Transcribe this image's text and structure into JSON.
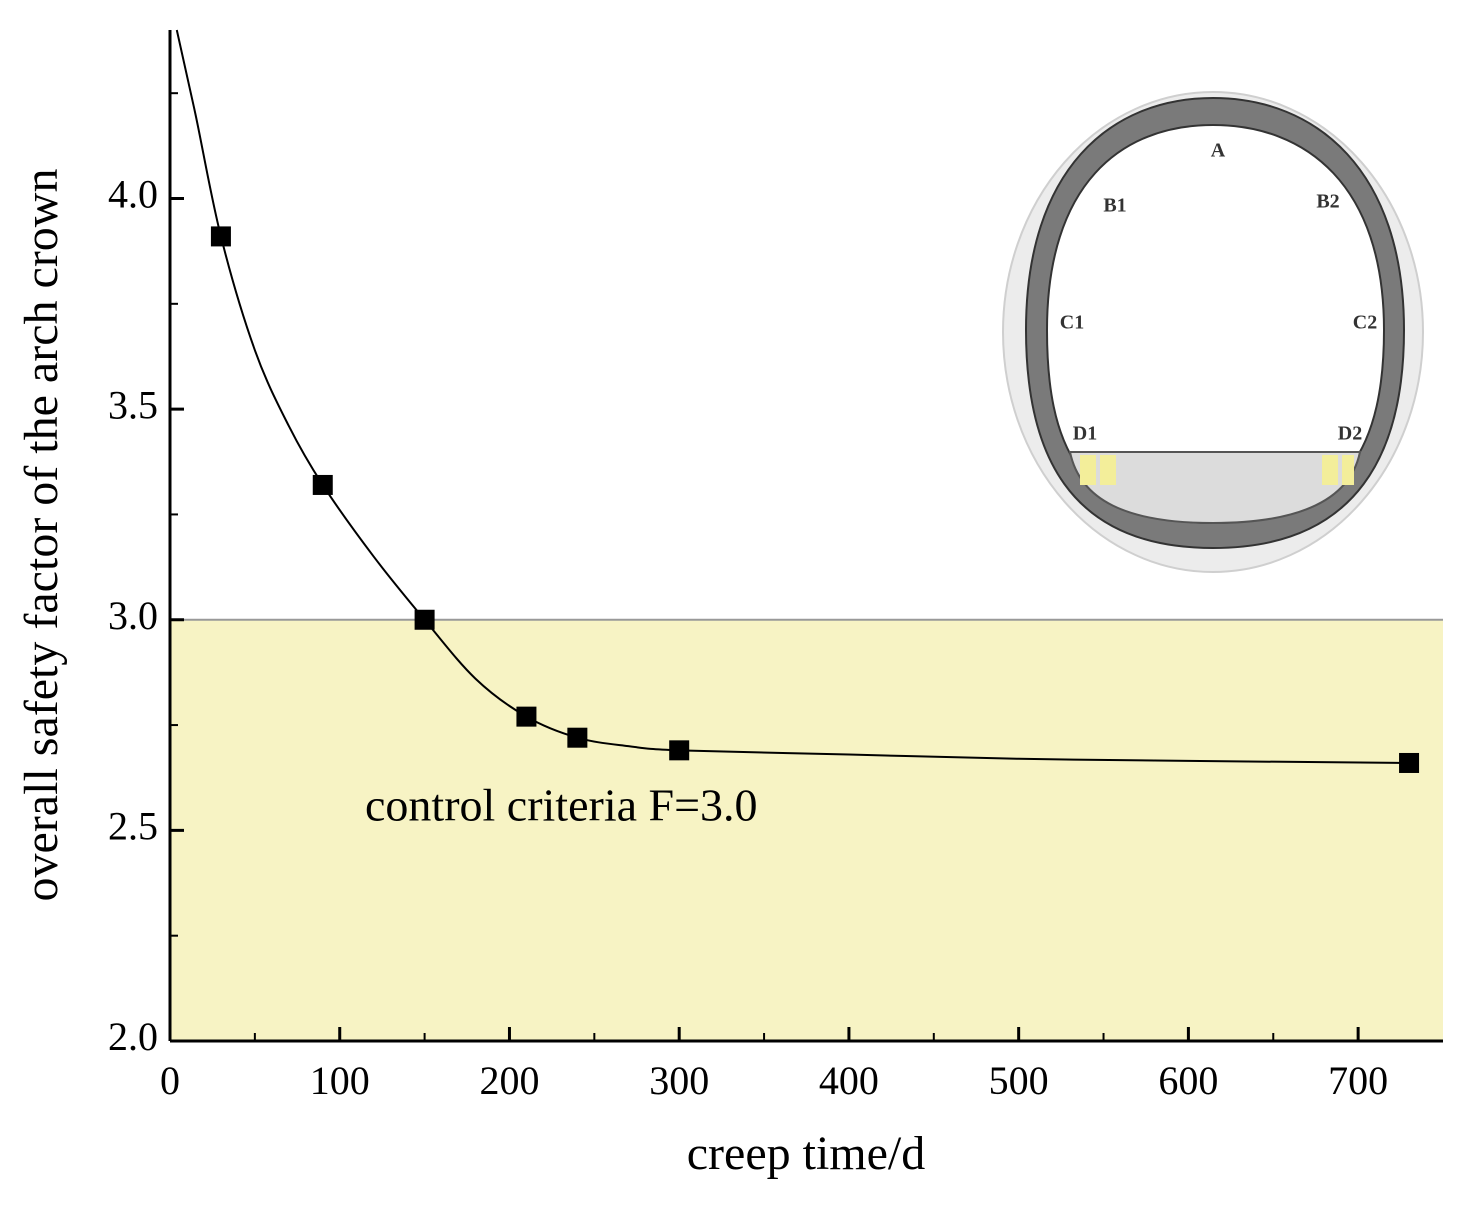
{
  "chart_data": {
    "type": "line",
    "xlabel": "creep time/d",
    "ylabel": "overall safety factor of the arch crown",
    "x": [
      30,
      90,
      150,
      210,
      240,
      300,
      730
    ],
    "values": [
      3.91,
      3.32,
      3.0,
      2.77,
      2.72,
      2.69,
      2.66
    ],
    "color": "#000000",
    "curve": {
      "x": [
        4,
        15,
        30,
        50,
        70,
        90,
        120,
        150,
        180,
        210,
        240,
        270,
        300,
        400,
        500,
        600,
        730
      ],
      "values": [
        4.4,
        4.2,
        3.91,
        3.64,
        3.46,
        3.32,
        3.15,
        3.0,
        2.86,
        2.77,
        2.72,
        2.7,
        2.69,
        2.68,
        2.67,
        2.665,
        2.66
      ]
    },
    "threshold": 3.0,
    "threshold_color": "#f7f3c4",
    "annotation": "control criteria F=3.0",
    "xlim": [
      0,
      750
    ],
    "ylim": [
      2.0,
      4.4
    ],
    "xticks": [
      0,
      100,
      200,
      300,
      400,
      500,
      600,
      700
    ],
    "xminorticks": [
      50,
      150,
      250,
      350,
      450,
      550,
      650
    ],
    "yticks": [
      {
        "value": 2.0,
        "label": "2.0"
      },
      {
        "value": 2.5,
        "label": "2.5"
      },
      {
        "value": 3.0,
        "label": "3.0"
      },
      {
        "value": 3.5,
        "label": "3.5"
      },
      {
        "value": 4.0,
        "label": "4.0"
      }
    ],
    "yminorticks": [
      2.25,
      2.75,
      3.25,
      3.75,
      4.25
    ],
    "inset_labels": [
      "A",
      "B1",
      "B2",
      "C1",
      "C2",
      "D1",
      "D2"
    ]
  }
}
